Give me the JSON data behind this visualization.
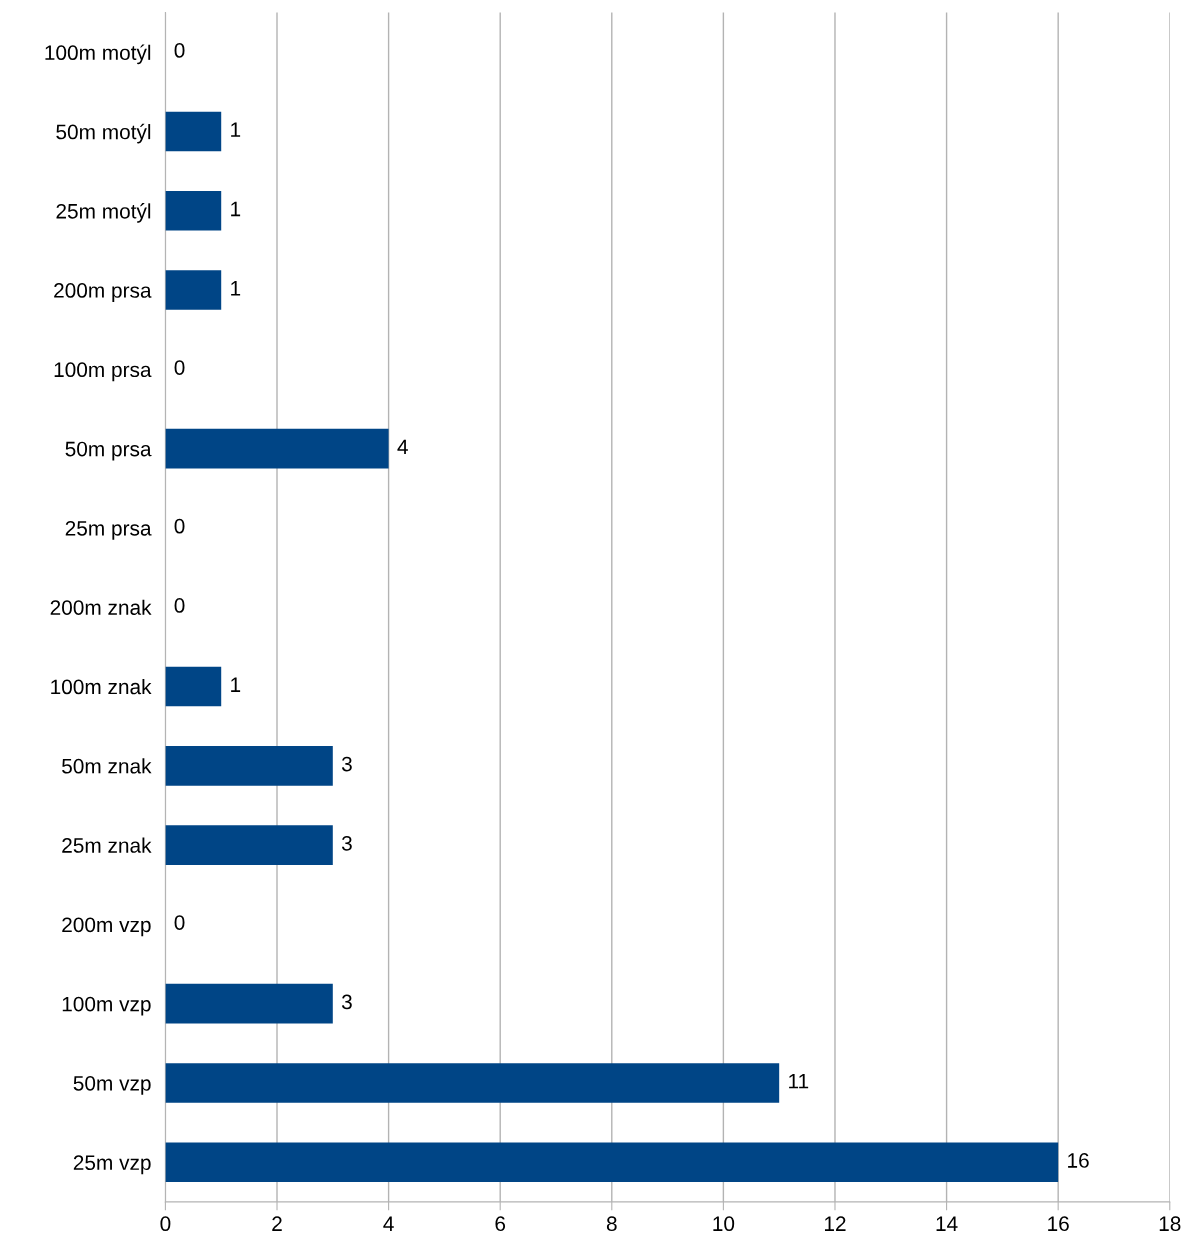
{
  "chart_data": {
    "type": "bar",
    "orientation": "horizontal",
    "categories": [
      "100m motýl",
      "50m motýl",
      "25m motýl",
      "200m prsa",
      "100m prsa",
      "50m prsa",
      "25m prsa",
      "200m znak",
      "100m znak",
      "50m znak",
      "25m znak",
      "200m vzp",
      "100m vzp",
      "50m vzp",
      "25m vzp"
    ],
    "values": [
      0,
      1,
      1,
      1,
      0,
      4,
      0,
      0,
      1,
      3,
      3,
      0,
      3,
      11,
      16
    ],
    "color": "#004586",
    "xlim": [
      0,
      18
    ],
    "xticks": [
      0,
      2,
      4,
      6,
      8,
      10,
      12,
      14,
      16,
      18
    ],
    "grid": "x",
    "data_labels": true,
    "legend": false
  }
}
